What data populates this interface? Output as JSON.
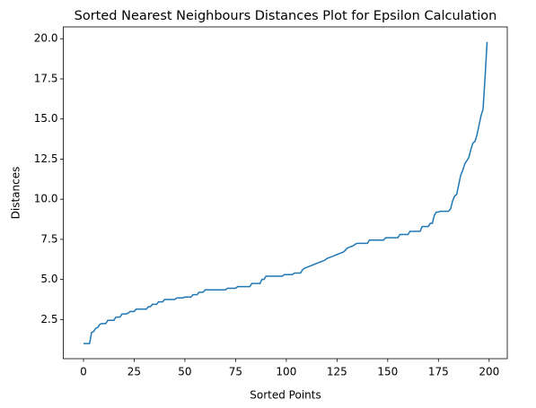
{
  "chart_data": {
    "type": "line",
    "title": "Sorted Nearest Neighbours Distances Plot for Epsilon Calculation",
    "xlabel": "Sorted Points",
    "ylabel": "Distances",
    "x": [
      0,
      1,
      2,
      3,
      4,
      5,
      6,
      7,
      8,
      9,
      10,
      11,
      12,
      13,
      14,
      15,
      16,
      17,
      18,
      19,
      20,
      21,
      22,
      23,
      24,
      25,
      26,
      27,
      28,
      29,
      30,
      31,
      32,
      33,
      34,
      35,
      36,
      37,
      38,
      39,
      40,
      41,
      42,
      43,
      44,
      45,
      46,
      47,
      48,
      49,
      50,
      51,
      52,
      53,
      54,
      55,
      56,
      57,
      58,
      59,
      60,
      61,
      62,
      63,
      64,
      65,
      66,
      67,
      68,
      69,
      70,
      71,
      72,
      73,
      74,
      75,
      76,
      77,
      78,
      79,
      80,
      81,
      82,
      83,
      84,
      85,
      86,
      87,
      88,
      89,
      90,
      91,
      92,
      93,
      94,
      95,
      96,
      97,
      98,
      99,
      100,
      101,
      102,
      103,
      104,
      105,
      106,
      107,
      108,
      109,
      110,
      111,
      112,
      113,
      114,
      115,
      116,
      117,
      118,
      119,
      120,
      121,
      122,
      123,
      124,
      125,
      126,
      127,
      128,
      129,
      130,
      131,
      132,
      133,
      134,
      135,
      136,
      137,
      138,
      139,
      140,
      141,
      142,
      143,
      144,
      145,
      146,
      147,
      148,
      149,
      150,
      151,
      152,
      153,
      154,
      155,
      156,
      157,
      158,
      159,
      160,
      161,
      162,
      163,
      164,
      165,
      166,
      167,
      168,
      169,
      170,
      171,
      172,
      173,
      174,
      175,
      176,
      177,
      178,
      179,
      180,
      181,
      182,
      183,
      184,
      185,
      186,
      187,
      188,
      189,
      190,
      191,
      192,
      193,
      194,
      195,
      196,
      197,
      198,
      199
    ],
    "series": [
      {
        "name": "Distances",
        "color": "#1f77b4",
        "values": [
          1.0,
          1.0,
          1.0,
          1.0,
          1.7,
          1.75,
          1.95,
          2.0,
          2.2,
          2.25,
          2.25,
          2.25,
          2.45,
          2.45,
          2.45,
          2.45,
          2.65,
          2.65,
          2.65,
          2.85,
          2.85,
          2.85,
          2.9,
          3.0,
          3.0,
          3.0,
          3.15,
          3.15,
          3.15,
          3.15,
          3.15,
          3.15,
          3.3,
          3.3,
          3.45,
          3.45,
          3.45,
          3.6,
          3.6,
          3.6,
          3.75,
          3.75,
          3.75,
          3.75,
          3.75,
          3.75,
          3.85,
          3.85,
          3.85,
          3.85,
          3.9,
          3.9,
          3.9,
          3.9,
          4.05,
          4.05,
          4.05,
          4.2,
          4.2,
          4.2,
          4.35,
          4.35,
          4.35,
          4.35,
          4.35,
          4.35,
          4.35,
          4.35,
          4.35,
          4.35,
          4.35,
          4.45,
          4.45,
          4.45,
          4.45,
          4.45,
          4.55,
          4.55,
          4.55,
          4.55,
          4.55,
          4.55,
          4.55,
          4.75,
          4.75,
          4.75,
          4.75,
          4.75,
          5.0,
          5.0,
          5.2,
          5.2,
          5.2,
          5.2,
          5.2,
          5.2,
          5.2,
          5.2,
          5.2,
          5.3,
          5.3,
          5.3,
          5.3,
          5.3,
          5.4,
          5.4,
          5.4,
          5.4,
          5.6,
          5.7,
          5.75,
          5.8,
          5.85,
          5.9,
          5.95,
          6.0,
          6.05,
          6.1,
          6.15,
          6.2,
          6.3,
          6.35,
          6.4,
          6.45,
          6.5,
          6.55,
          6.6,
          6.65,
          6.7,
          6.8,
          6.95,
          7.0,
          7.05,
          7.1,
          7.2,
          7.25,
          7.25,
          7.25,
          7.25,
          7.25,
          7.25,
          7.45,
          7.45,
          7.45,
          7.45,
          7.45,
          7.45,
          7.45,
          7.45,
          7.6,
          7.6,
          7.6,
          7.6,
          7.6,
          7.6,
          7.6,
          7.8,
          7.8,
          7.8,
          7.8,
          7.8,
          8.0,
          8.0,
          8.0,
          8.0,
          8.0,
          8.0,
          8.3,
          8.3,
          8.3,
          8.3,
          8.5,
          8.5,
          9.0,
          9.2,
          9.2,
          9.25,
          9.25,
          9.25,
          9.25,
          9.25,
          9.4,
          9.9,
          10.2,
          10.3,
          10.9,
          11.5,
          11.8,
          12.2,
          12.4,
          12.6,
          13.1,
          13.5,
          13.6,
          14.0,
          14.6,
          15.2,
          15.6,
          17.6,
          19.8
        ]
      }
    ],
    "xlim": [
      -9.95,
      208.95
    ],
    "xticks": [
      0,
      25,
      50,
      75,
      100,
      125,
      150,
      175,
      200
    ],
    "ylim": [
      0.06,
      20.74
    ],
    "yticks": [
      2.5,
      {
        "value": 5,
        "label": "5.0"
      },
      7.5,
      {
        "value": 10,
        "label": "10.0"
      },
      12.5,
      {
        "value": 15,
        "label": "15.0"
      },
      17.5,
      {
        "value": 20,
        "label": "20.0"
      }
    ],
    "grid": false
  }
}
